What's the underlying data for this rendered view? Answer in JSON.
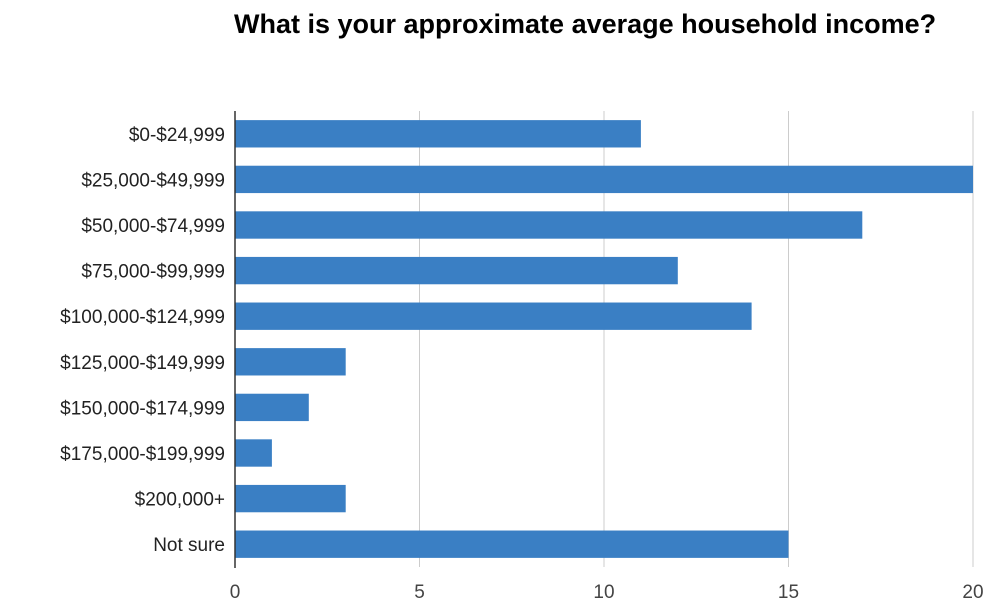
{
  "chart_data": {
    "type": "bar",
    "orientation": "horizontal",
    "title": "What is your approximate average household income?",
    "xlabel": "",
    "ylabel": "",
    "categories": [
      "$0-$24,999",
      "$25,000-$49,999",
      "$50,000-$74,999",
      "$75,000-$99,999",
      "$100,000-$124,999",
      "$125,000-$149,999",
      "$150,000-$174,999",
      "$175,000-$199,999",
      "$200,000+",
      "Not sure"
    ],
    "values": [
      11,
      20,
      17,
      12,
      14,
      3,
      2,
      1,
      3,
      15
    ],
    "xlim": [
      0,
      20
    ],
    "xticks": [
      0,
      5,
      10,
      15,
      20
    ],
    "grid": true,
    "legend": "none",
    "colors": {
      "bar": "#3a7fc4",
      "gridline": "#cccccc",
      "axis": "#333333"
    }
  }
}
